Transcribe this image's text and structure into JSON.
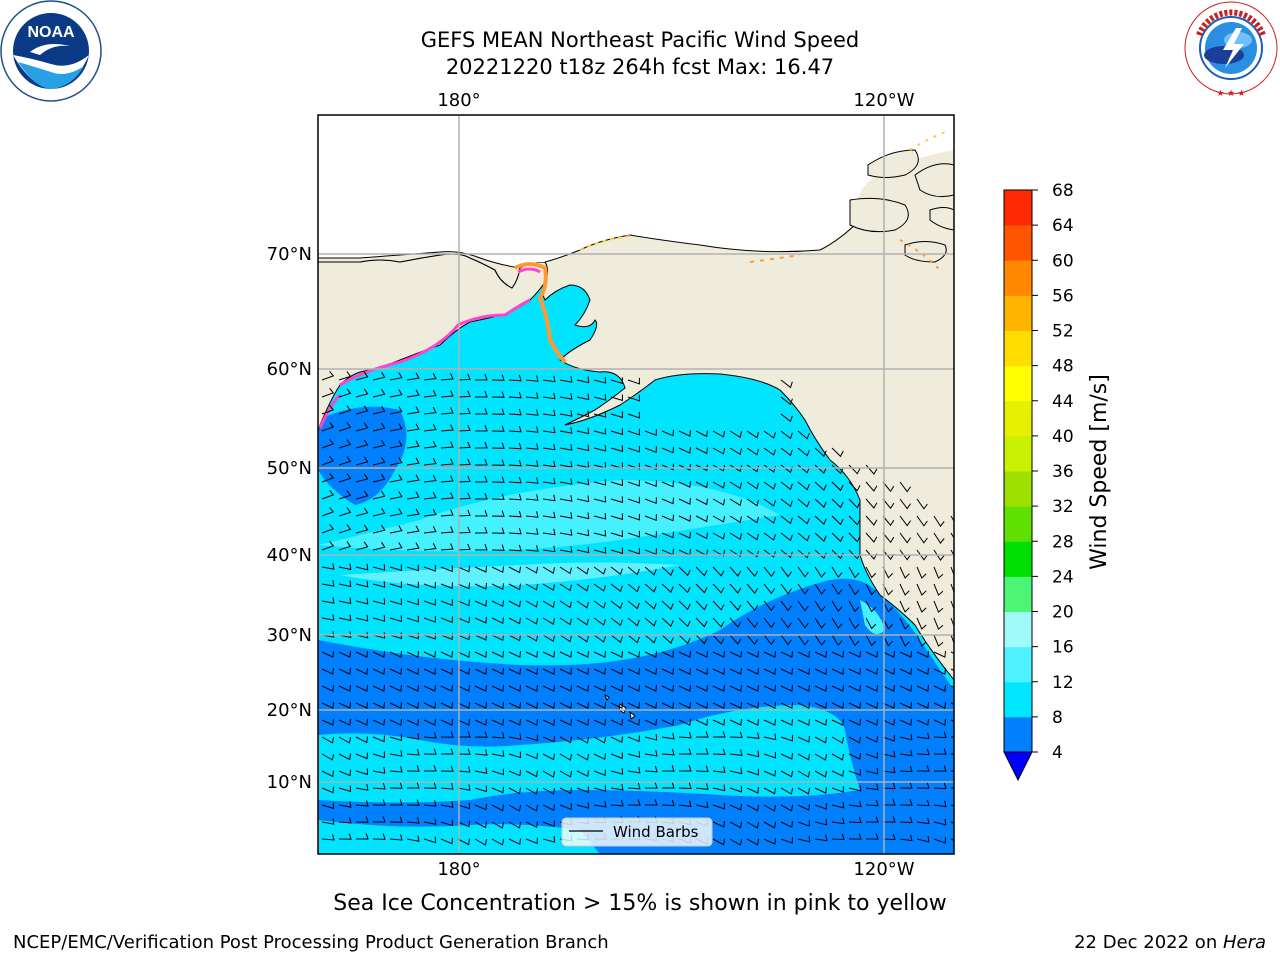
{
  "title": {
    "line1": "GEFS MEAN Northeast Pacific Wind Speed",
    "line2": "20221220 t18z 264h fcst   Max: 16.47"
  },
  "map": {
    "top_lon_labels": [
      "180°",
      "120°W"
    ],
    "bottom_lon_labels": [
      "180°",
      "120°W"
    ],
    "lat_labels": [
      "70°N",
      "60°N",
      "50°N",
      "40°N",
      "30°N",
      "20°N",
      "10°N"
    ],
    "legend_label": "Wind Barbs",
    "colors": {
      "land": "#efecdc",
      "ocean_4_8": "#0080ff",
      "ocean_8_12": "#00e4ff",
      "ocean_12_16": "#45f0ff",
      "ocean_16_20": "#9efaff",
      "ice_pink": "#ff44cc",
      "ice_orange": "#ff9933",
      "ice_yellow": "#ffee00"
    }
  },
  "colorbar": {
    "label": "Wind Speed [m/s]",
    "ticks": [
      "4",
      "8",
      "12",
      "16",
      "20",
      "24",
      "28",
      "32",
      "36",
      "40",
      "44",
      "48",
      "52",
      "56",
      "60",
      "64",
      "68"
    ],
    "colors": [
      "#0080ff",
      "#00e6ff",
      "#4ff2ff",
      "#a0fafa",
      "#4cf576",
      "#00e000",
      "#5fe000",
      "#9ee000",
      "#c8f000",
      "#e6f000",
      "#ffff00",
      "#ffdd00",
      "#ffb400",
      "#ff8800",
      "#ff5500",
      "#ff2a00"
    ],
    "under_color": "#0000ff"
  },
  "note": "Sea Ice Concentration > 15% is shown in pink to yellow",
  "footer": {
    "left": "NCEP/EMC/Verification Post Processing Product Generation Branch",
    "right_date": "22 Dec 2022 on ",
    "right_host": "Hera"
  },
  "logos": {
    "noaa_text": "NOAA",
    "nws_text": "NATIONAL WEATHER SERVICE"
  }
}
